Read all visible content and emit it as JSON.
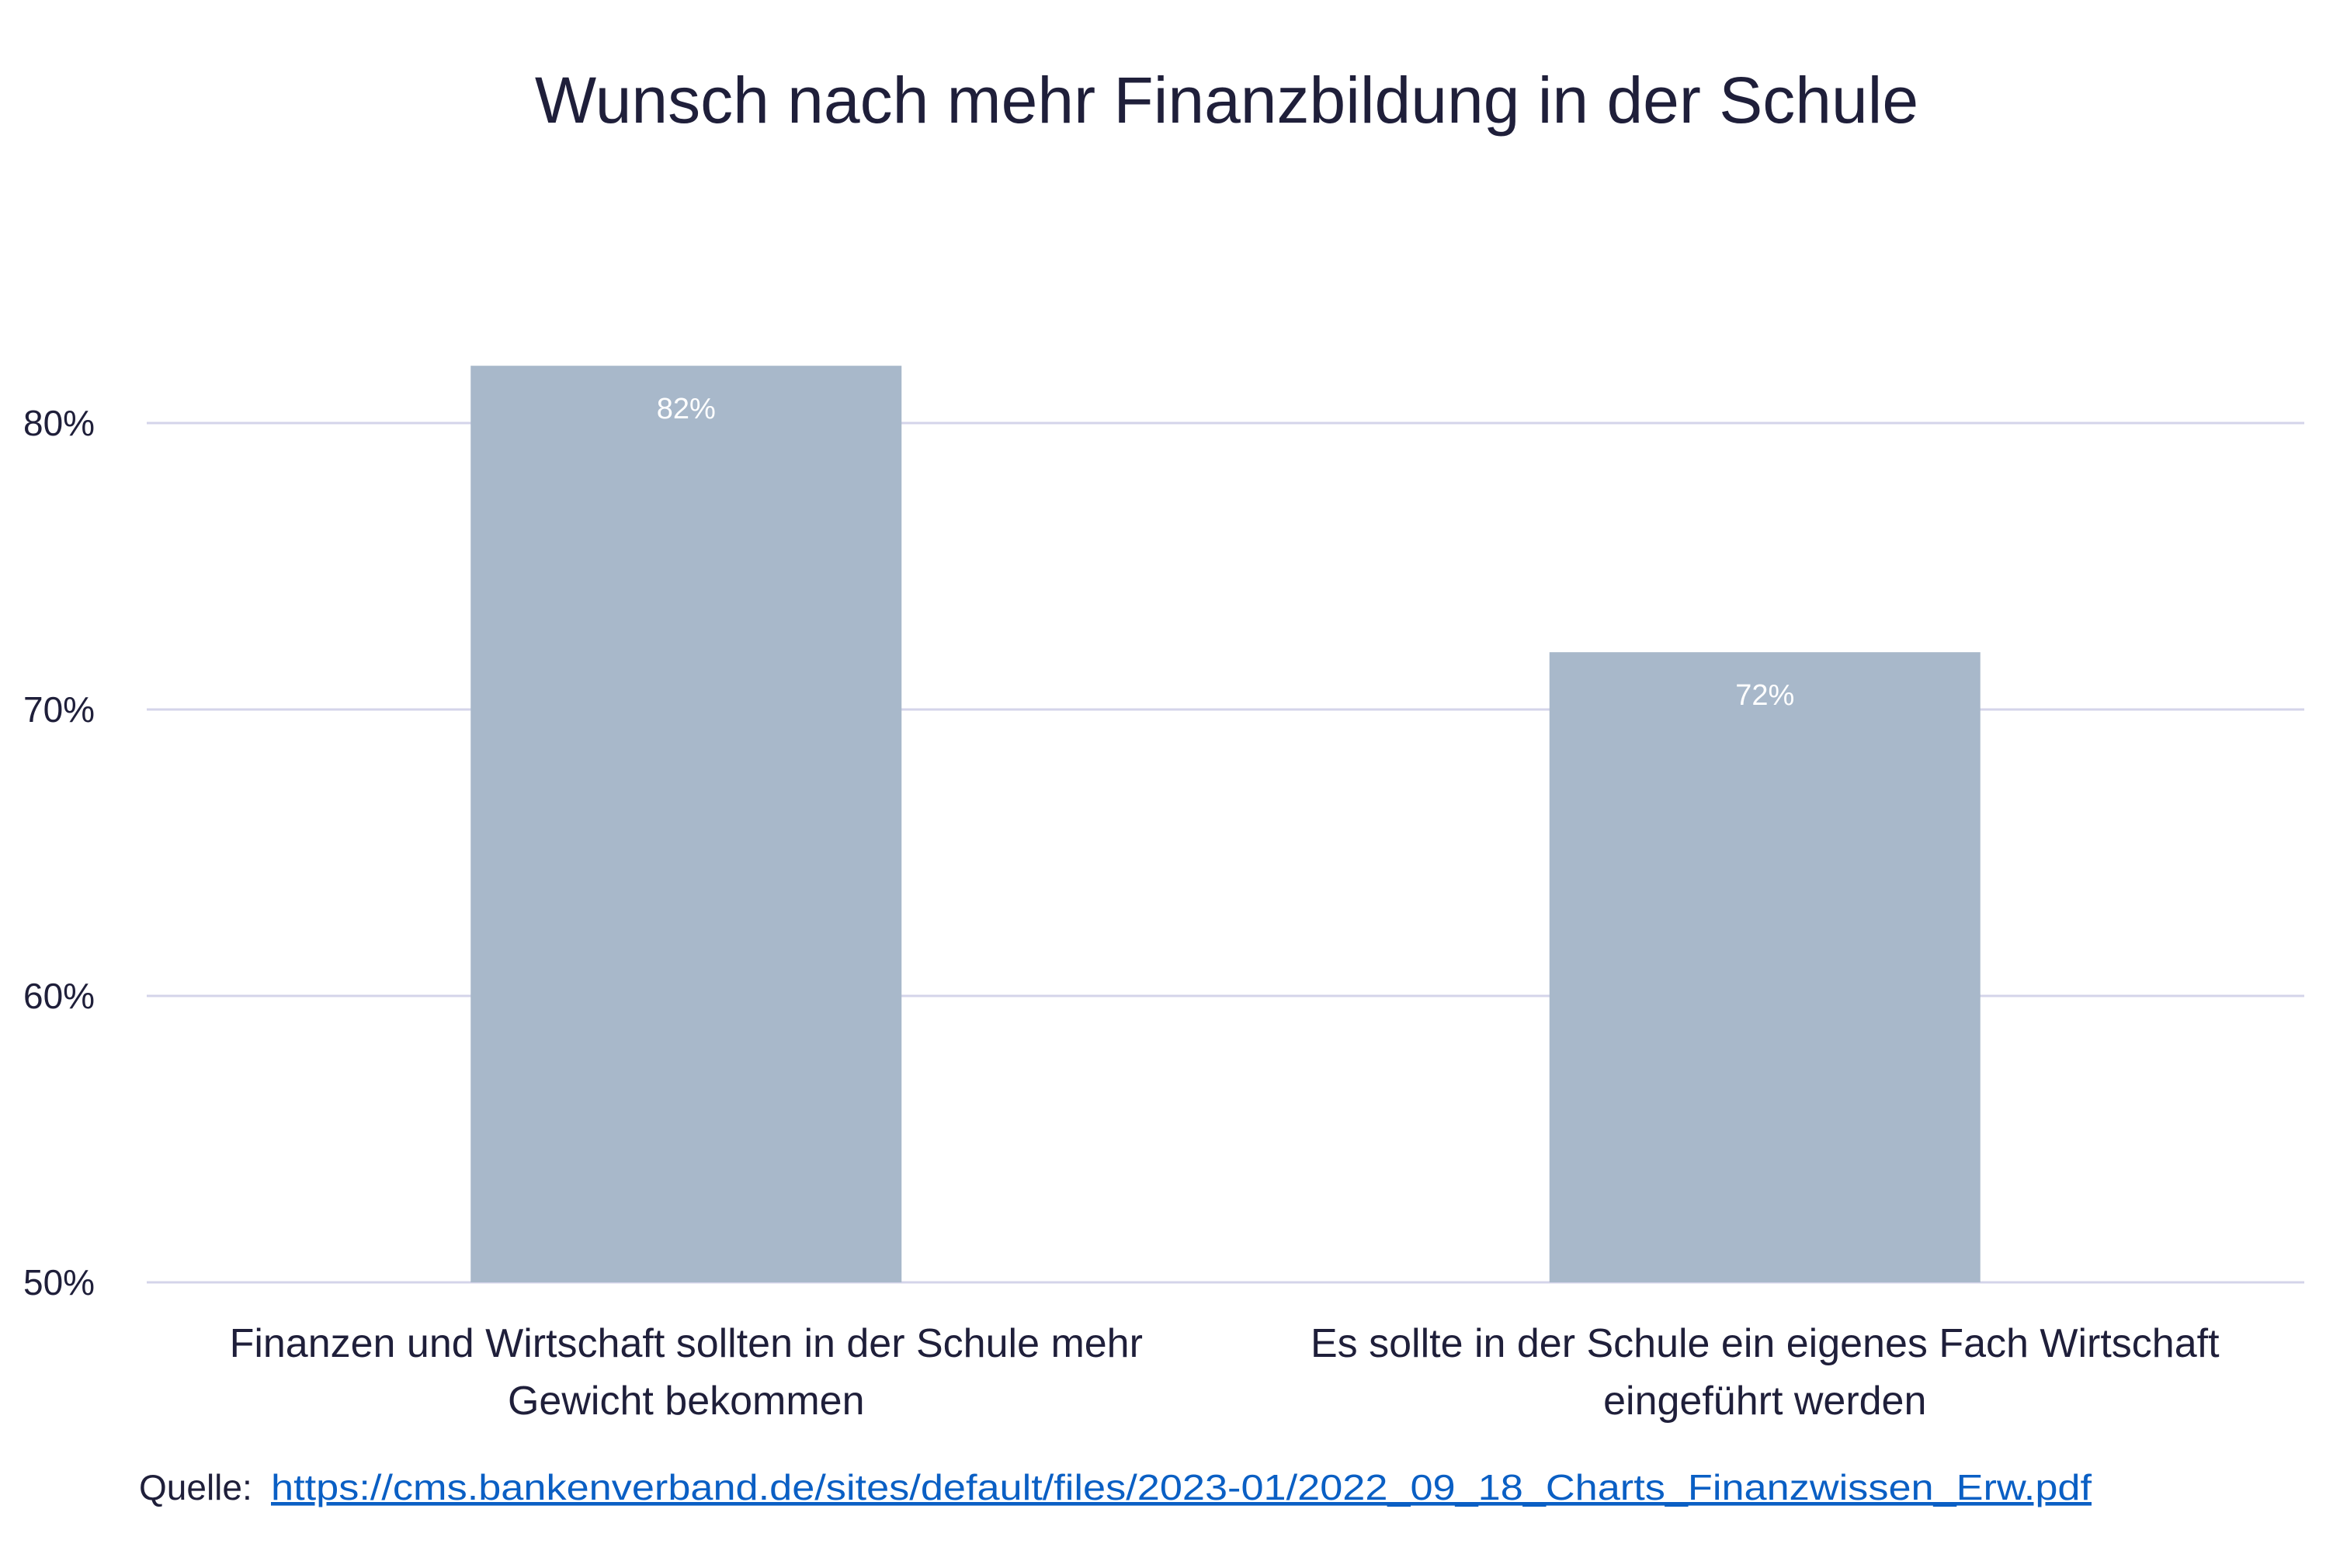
{
  "chart_data": {
    "type": "bar",
    "title": "Wunsch nach mehr Finanzbildung in der Schule",
    "categories": [
      [
        "Finanzen und Wirtschaft sollten in der Schule mehr",
        "Gewicht bekommen"
      ],
      [
        "Es sollte in der Schule ein eigenes Fach Wirtschaft",
        "eingeführt werden"
      ]
    ],
    "values": [
      82,
      72
    ],
    "data_labels": [
      "82%",
      "72%"
    ],
    "ylim": [
      50,
      82
    ],
    "yticks": [
      50,
      60,
      70,
      80
    ],
    "ytick_labels": [
      "50%",
      "60%",
      "70%",
      "80%"
    ],
    "xlabel": "",
    "ylabel": "",
    "grid": true,
    "legend": "none",
    "colors": {
      "bar": "#a8b8ca",
      "grid": "#d4d4ea",
      "text": "#1f1f3a"
    }
  },
  "source": {
    "label": "Quelle:",
    "url_text": "https://cms.bankenverband.de/sites/default/files/2023-01/2022_09_18_Charts_Finanzwissen_Erw.pdf",
    "link_color": "#0a5fc4"
  }
}
